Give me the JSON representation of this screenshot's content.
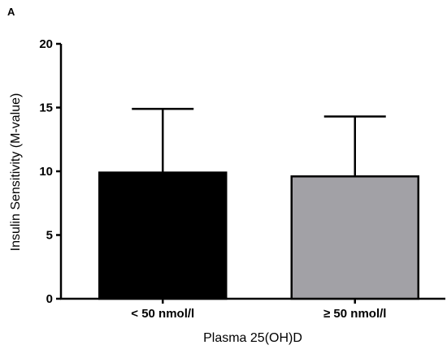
{
  "panel_label": "A",
  "chart_data": {
    "type": "bar",
    "categories": [
      "< 50 nmol/l",
      "≥ 50 nmol/l"
    ],
    "series": [
      {
        "values": [
          9.9,
          9.6
        ],
        "error_upper": [
          5.0,
          4.7
        ]
      }
    ],
    "bar_colors": [
      "#000000",
      "#a2a1a6"
    ],
    "xlabel": "Plasma 25(OH)D",
    "ylabel": "Insulin Sensitivity (M-value)",
    "ylim": [
      0,
      20
    ],
    "yticks": [
      0,
      5,
      10,
      15,
      20
    ],
    "grid": false,
    "legend": "none"
  }
}
